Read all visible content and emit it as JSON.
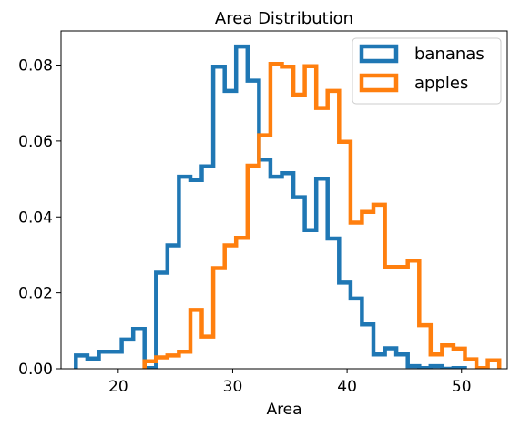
{
  "chart_data": {
    "type": "histogram",
    "title": "Area Distribution",
    "xlabel": "Area",
    "ylabel": "",
    "xlim": [
      15.0,
      54.0
    ],
    "ylim": [
      0,
      0.089
    ],
    "xticks": [
      20,
      30,
      40,
      50
    ],
    "yticks": [
      0.0,
      0.02,
      0.04,
      0.06,
      0.08
    ],
    "ytick_labels": [
      "0.00",
      "0.02",
      "0.04",
      "0.06",
      "0.08"
    ],
    "legend_position": "upper-right",
    "series": [
      {
        "name": "bananas",
        "color": "#1f77b4",
        "bin_edges": [
          16.3,
          17.3,
          18.3,
          19.3,
          20.3,
          21.3,
          22.3,
          23.3,
          24.3,
          25.3,
          26.3,
          27.3,
          28.3,
          29.3,
          30.3,
          31.3,
          32.3,
          33.3,
          34.3,
          35.3,
          36.3,
          37.3,
          38.3,
          39.3,
          40.3,
          41.3,
          42.3,
          43.3,
          44.3,
          45.3,
          46.3,
          47.3,
          48.3,
          49.3,
          50.3
        ],
        "density": [
          0.0035,
          0.0027,
          0.0045,
          0.0045,
          0.0077,
          0.0105,
          0.0002,
          0.0253,
          0.0325,
          0.0506,
          0.0497,
          0.0533,
          0.0796,
          0.0732,
          0.0849,
          0.0759,
          0.0551,
          0.0506,
          0.0515,
          0.0452,
          0.0365,
          0.0501,
          0.0343,
          0.0227,
          0.0185,
          0.0117,
          0.0038,
          0.0054,
          0.0038,
          0.0007,
          0.0002,
          0.0007,
          0.0,
          0.0002
        ]
      },
      {
        "name": "apples",
        "color": "#ff7f0e",
        "bin_edges": [
          22.3,
          23.3,
          24.3,
          25.3,
          26.3,
          27.3,
          28.3,
          29.3,
          30.3,
          31.3,
          32.3,
          33.3,
          34.3,
          35.3,
          36.3,
          37.3,
          38.3,
          39.3,
          40.3,
          41.3,
          42.3,
          43.3,
          44.3,
          45.3,
          46.3,
          47.3,
          48.3,
          49.3,
          50.3,
          51.3,
          52.3,
          53.3
        ],
        "density": [
          0.002,
          0.003,
          0.0035,
          0.0045,
          0.0155,
          0.0085,
          0.0265,
          0.0325,
          0.0345,
          0.0535,
          0.0615,
          0.0803,
          0.0796,
          0.0722,
          0.0797,
          0.0687,
          0.0732,
          0.0598,
          0.0385,
          0.0413,
          0.0432,
          0.0268,
          0.0268,
          0.0285,
          0.0115,
          0.0038,
          0.0062,
          0.0053,
          0.0025,
          0.0002,
          0.0022
        ]
      }
    ]
  }
}
